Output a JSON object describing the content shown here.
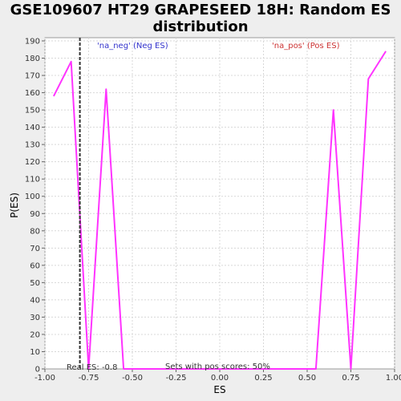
{
  "chart_data": {
    "type": "line",
    "title_line1": "GSE109607 HT29 GRAPESEED 18H: Random ES",
    "title_line2": "distribution",
    "xlabel": "ES",
    "ylabel": "P(ES)",
    "xlim": [
      -1.0,
      1.0
    ],
    "ylim": [
      0,
      190
    ],
    "xticks": [
      -1.0,
      -0.75,
      -0.5,
      -0.25,
      0.0,
      0.25,
      0.5,
      0.75,
      1.0
    ],
    "xtick_labels": [
      "-1.00",
      "-0.75",
      "-0.50",
      "-0.25",
      "0.00",
      "0.25",
      "0.50",
      "0.75",
      "1.00"
    ],
    "yticks": [
      0,
      10,
      20,
      30,
      40,
      50,
      60,
      70,
      80,
      90,
      100,
      110,
      120,
      130,
      140,
      150,
      160,
      170,
      180,
      190
    ],
    "grid": true,
    "series": [
      {
        "color": "#ff33ff",
        "x": [
          -0.95,
          -0.85,
          -0.75,
          -0.65,
          -0.55,
          -0.45,
          -0.35,
          -0.25,
          -0.15,
          -0.05,
          0.05,
          0.15,
          0.25,
          0.35,
          0.45,
          0.55,
          0.65,
          0.75,
          0.85,
          0.95
        ],
        "y": [
          158,
          178,
          0,
          162,
          0,
          0,
          0,
          0,
          0,
          0,
          0,
          0,
          0,
          0,
          0,
          0,
          150,
          0,
          168,
          184
        ]
      }
    ],
    "real_es": -0.8,
    "real_es_label": "Real ES: -0.8",
    "neg_label": "'na_neg' (Neg ES)",
    "pos_label": "'na_pos' (Pos ES)",
    "sets_label": "Sets with pos scores: 50%",
    "neg_color": "#3333cc",
    "pos_color": "#cc3333"
  }
}
